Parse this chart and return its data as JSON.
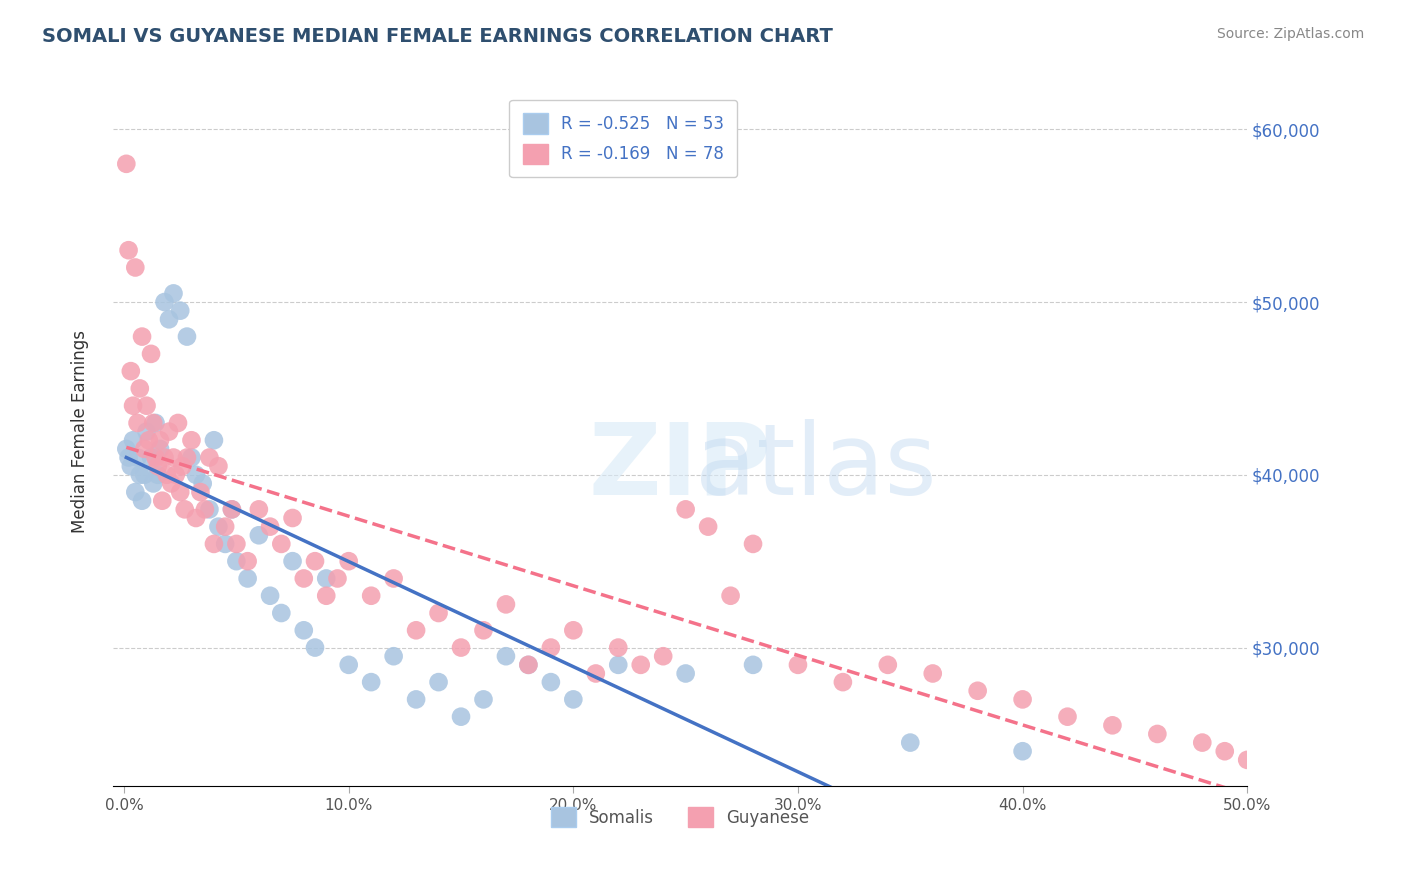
{
  "title": "SOMALI VS GUYANESE MEDIAN FEMALE EARNINGS CORRELATION CHART",
  "source": "Source: ZipAtlas.com",
  "xlabel": "",
  "ylabel": "Median Female Earnings",
  "xlim": [
    0,
    0.5
  ],
  "ylim": [
    22000,
    63000
  ],
  "yticks": [
    30000,
    40000,
    50000,
    60000
  ],
  "ytick_labels": [
    "$30,000",
    "$40,000",
    "$50,000",
    "$60,000"
  ],
  "xticks": [
    0.0,
    0.1,
    0.2,
    0.3,
    0.4,
    0.5
  ],
  "xtick_labels": [
    "0.0%",
    "10.0%",
    "20.0%",
    "30.0%",
    "40.0%",
    "50.0%"
  ],
  "somali_color": "#a8c4e0",
  "guyanese_color": "#f4a0b0",
  "somali_line_color": "#4472c4",
  "guyanese_line_color": "#f4728a",
  "somali_R": -0.525,
  "somali_N": 53,
  "guyanese_R": -0.169,
  "guyanese_N": 78,
  "legend_text_color": "#4472c4",
  "title_color": "#2F4F6F",
  "watermark": "ZIPatlas",
  "somali_scatter": [
    [
      0.001,
      41500
    ],
    [
      0.002,
      41000
    ],
    [
      0.003,
      40500
    ],
    [
      0.004,
      42000
    ],
    [
      0.005,
      39000
    ],
    [
      0.006,
      41000
    ],
    [
      0.007,
      40000
    ],
    [
      0.008,
      38500
    ],
    [
      0.009,
      40000
    ],
    [
      0.01,
      42500
    ],
    [
      0.012,
      41000
    ],
    [
      0.013,
      39500
    ],
    [
      0.014,
      43000
    ],
    [
      0.015,
      40000
    ],
    [
      0.016,
      41500
    ],
    [
      0.018,
      50000
    ],
    [
      0.02,
      49000
    ],
    [
      0.022,
      50500
    ],
    [
      0.025,
      49500
    ],
    [
      0.028,
      48000
    ],
    [
      0.03,
      41000
    ],
    [
      0.032,
      40000
    ],
    [
      0.035,
      39500
    ],
    [
      0.038,
      38000
    ],
    [
      0.04,
      42000
    ],
    [
      0.042,
      37000
    ],
    [
      0.045,
      36000
    ],
    [
      0.048,
      38000
    ],
    [
      0.05,
      35000
    ],
    [
      0.055,
      34000
    ],
    [
      0.06,
      36500
    ],
    [
      0.065,
      33000
    ],
    [
      0.07,
      32000
    ],
    [
      0.075,
      35000
    ],
    [
      0.08,
      31000
    ],
    [
      0.085,
      30000
    ],
    [
      0.09,
      34000
    ],
    [
      0.1,
      29000
    ],
    [
      0.11,
      28000
    ],
    [
      0.12,
      29500
    ],
    [
      0.13,
      27000
    ],
    [
      0.14,
      28000
    ],
    [
      0.15,
      26000
    ],
    [
      0.16,
      27000
    ],
    [
      0.17,
      29500
    ],
    [
      0.18,
      29000
    ],
    [
      0.19,
      28000
    ],
    [
      0.2,
      27000
    ],
    [
      0.22,
      29000
    ],
    [
      0.25,
      28500
    ],
    [
      0.28,
      29000
    ],
    [
      0.35,
      24500
    ],
    [
      0.4,
      24000
    ]
  ],
  "guyanese_scatter": [
    [
      0.001,
      58000
    ],
    [
      0.002,
      53000
    ],
    [
      0.003,
      46000
    ],
    [
      0.004,
      44000
    ],
    [
      0.005,
      52000
    ],
    [
      0.006,
      43000
    ],
    [
      0.007,
      45000
    ],
    [
      0.008,
      48000
    ],
    [
      0.009,
      41500
    ],
    [
      0.01,
      44000
    ],
    [
      0.011,
      42000
    ],
    [
      0.012,
      47000
    ],
    [
      0.013,
      43000
    ],
    [
      0.014,
      41000
    ],
    [
      0.015,
      40500
    ],
    [
      0.016,
      42000
    ],
    [
      0.017,
      38500
    ],
    [
      0.018,
      41000
    ],
    [
      0.019,
      40000
    ],
    [
      0.02,
      42500
    ],
    [
      0.021,
      39500
    ],
    [
      0.022,
      41000
    ],
    [
      0.023,
      40000
    ],
    [
      0.024,
      43000
    ],
    [
      0.025,
      39000
    ],
    [
      0.026,
      40500
    ],
    [
      0.027,
      38000
    ],
    [
      0.028,
      41000
    ],
    [
      0.03,
      42000
    ],
    [
      0.032,
      37500
    ],
    [
      0.034,
      39000
    ],
    [
      0.036,
      38000
    ],
    [
      0.038,
      41000
    ],
    [
      0.04,
      36000
    ],
    [
      0.042,
      40500
    ],
    [
      0.045,
      37000
    ],
    [
      0.048,
      38000
    ],
    [
      0.05,
      36000
    ],
    [
      0.055,
      35000
    ],
    [
      0.06,
      38000
    ],
    [
      0.065,
      37000
    ],
    [
      0.07,
      36000
    ],
    [
      0.075,
      37500
    ],
    [
      0.08,
      34000
    ],
    [
      0.085,
      35000
    ],
    [
      0.09,
      33000
    ],
    [
      0.095,
      34000
    ],
    [
      0.1,
      35000
    ],
    [
      0.11,
      33000
    ],
    [
      0.12,
      34000
    ],
    [
      0.13,
      31000
    ],
    [
      0.14,
      32000
    ],
    [
      0.15,
      30000
    ],
    [
      0.16,
      31000
    ],
    [
      0.17,
      32500
    ],
    [
      0.18,
      29000
    ],
    [
      0.19,
      30000
    ],
    [
      0.2,
      31000
    ],
    [
      0.21,
      28500
    ],
    [
      0.22,
      30000
    ],
    [
      0.23,
      29000
    ],
    [
      0.24,
      29500
    ],
    [
      0.25,
      38000
    ],
    [
      0.26,
      37000
    ],
    [
      0.27,
      33000
    ],
    [
      0.28,
      36000
    ],
    [
      0.3,
      29000
    ],
    [
      0.32,
      28000
    ],
    [
      0.34,
      29000
    ],
    [
      0.36,
      28500
    ],
    [
      0.38,
      27500
    ],
    [
      0.4,
      27000
    ],
    [
      0.42,
      26000
    ],
    [
      0.44,
      25500
    ],
    [
      0.46,
      25000
    ],
    [
      0.48,
      24500
    ],
    [
      0.49,
      24000
    ],
    [
      0.5,
      23500
    ]
  ]
}
